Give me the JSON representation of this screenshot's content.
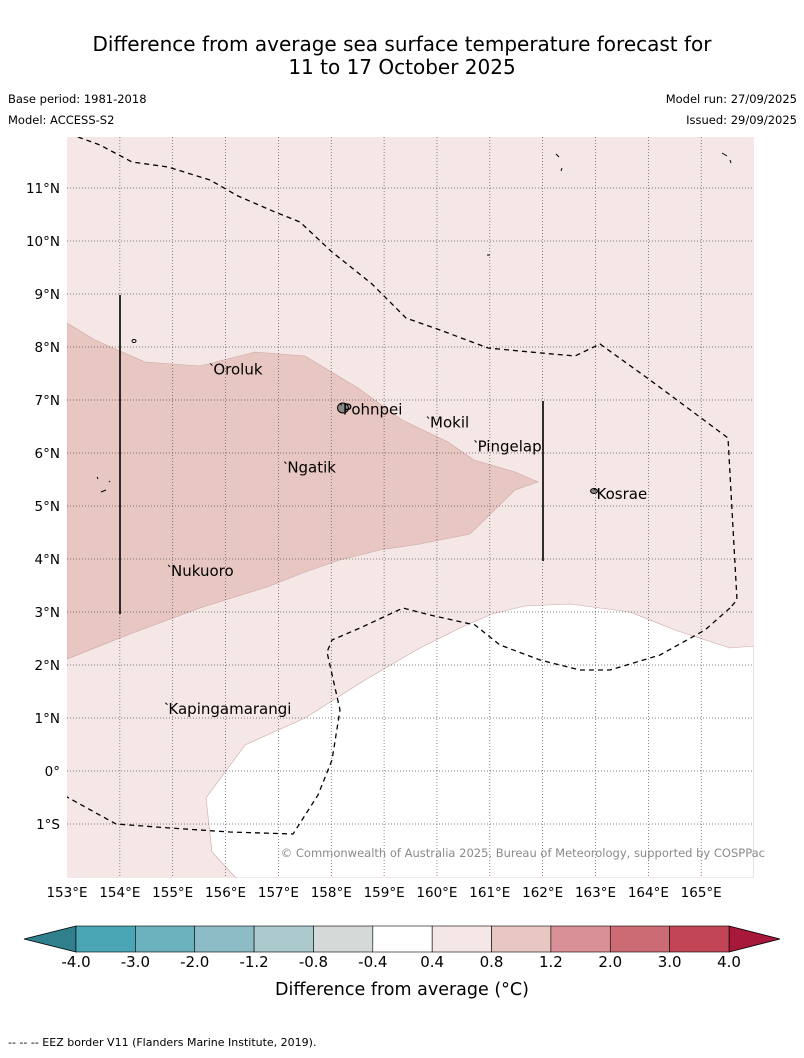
{
  "title": {
    "line1": "Difference from average sea surface temperature forecast for",
    "line2": "11 to 17 October 2025"
  },
  "meta": {
    "base_period": "Base period: 1981-2018",
    "model": "Model: ACCESS-S2",
    "model_run": "Model run: 27/09/2025",
    "issued": "Issued: 29/09/2025"
  },
  "map": {
    "lon_range": [
      153,
      166
    ],
    "lat_range": [
      -2,
      12
    ],
    "lon_ticks": [
      153,
      154,
      155,
      156,
      157,
      158,
      159,
      160,
      161,
      162,
      163,
      164,
      165
    ],
    "lon_labels": [
      "153°E",
      "154°E",
      "155°E",
      "156°E",
      "157°E",
      "158°E",
      "159°E",
      "160°E",
      "161°E",
      "162°E",
      "163°E",
      "164°E",
      "165°E"
    ],
    "lat_ticks": [
      11,
      10,
      9,
      8,
      7,
      6,
      5,
      4,
      3,
      2,
      1,
      0,
      -1
    ],
    "lat_labels": [
      "11°N",
      "10°N",
      "9°N",
      "8°N",
      "7°N",
      "6°N",
      "5°N",
      "4°N",
      "3°N",
      "2°N",
      "1°N",
      "0°",
      "1°S"
    ],
    "places": [
      {
        "name": "Oroluk",
        "lon": 155.75,
        "lat": 7.65
      },
      {
        "name": "Pohnpei",
        "lon": 158.2,
        "lat": 6.9
      },
      {
        "name": "Mokil",
        "lon": 159.85,
        "lat": 6.65
      },
      {
        "name": "Pingelap",
        "lon": 160.75,
        "lat": 6.2
      },
      {
        "name": "Ngatik",
        "lon": 157.15,
        "lat": 5.8
      },
      {
        "name": "Kosrae",
        "lon": 163.0,
        "lat": 5.3
      },
      {
        "name": "Nukuoro",
        "lon": 154.95,
        "lat": 3.85
      },
      {
        "name": "Kapingamarangi",
        "lon": 154.9,
        "lat": 1.25
      }
    ],
    "copyright": "© Commonwealth of Australia 2025, Bureau of Meteorology, supported by COSPPac"
  },
  "colorbar": {
    "title": "Difference from average (°C)",
    "tick_labels": [
      "-4.0",
      "-3.0",
      "-2.0",
      "-1.2",
      "-0.8",
      "-0.4",
      "0.4",
      "0.8",
      "1.2",
      "2.0",
      "3.0",
      "4.0"
    ],
    "bins": [
      "#4aa6b4",
      "#6bb1be",
      "#8dbcc6",
      "#acc9cd",
      "#d5d9d8",
      "#ffffff",
      "#f5e7e6",
      "#e8c7c3",
      "#d99096",
      "#cc6b74",
      "#c24555"
    ],
    "under_color": "#2f7f8c",
    "over_color": "#a8183a"
  },
  "footer": "-- -- -- EEZ border V11 (Flanders Marine Institute, 2019)."
}
